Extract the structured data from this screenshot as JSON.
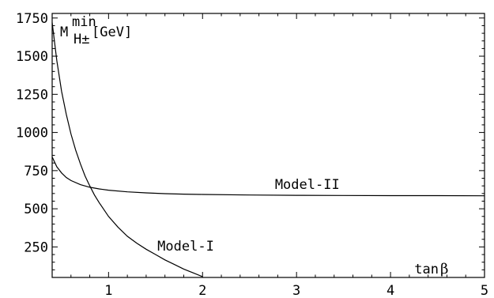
{
  "chart_data": {
    "type": "line",
    "ylabel": {
      "symbol": "M",
      "superscript": "min",
      "subscript": "H±",
      "unit": "[GeV]"
    },
    "xlabel": {
      "text": "tan",
      "symbol": "β"
    },
    "xlim": [
      0.4,
      5
    ],
    "ylim": [
      50,
      1780
    ],
    "xticks": [
      1,
      2,
      3,
      4,
      5
    ],
    "yticks": [
      250,
      500,
      750,
      1000,
      1250,
      1500,
      1750
    ],
    "grid": false,
    "series": [
      {
        "name": "Model-I",
        "x": [
          0.4,
          0.45,
          0.5,
          0.55,
          0.6,
          0.65,
          0.7,
          0.75,
          0.8,
          0.85,
          0.9,
          1.0,
          1.1,
          1.2,
          1.3,
          1.4,
          1.5,
          1.6,
          1.7,
          1.8,
          1.9,
          2.0
        ],
        "y": [
          1720,
          1470,
          1270,
          1120,
          990,
          885,
          795,
          715,
          650,
          590,
          540,
          450,
          380,
          320,
          275,
          235,
          200,
          165,
          135,
          105,
          80,
          55
        ]
      },
      {
        "name": "Model-II",
        "x": [
          0.4,
          0.45,
          0.5,
          0.55,
          0.6,
          0.7,
          0.8,
          0.9,
          1.0,
          1.2,
          1.4,
          1.6,
          1.8,
          2.0,
          2.5,
          3.0,
          3.5,
          4.0,
          4.5,
          5.0
        ],
        "y": [
          840,
          775,
          735,
          705,
          685,
          658,
          641,
          630,
          622,
          611,
          604,
          599,
          596,
          594,
          590,
          588,
          587,
          586,
          586,
          585
        ]
      }
    ],
    "annotations": [
      {
        "text": "Model-I",
        "x": 1.52,
        "y": 225
      },
      {
        "text": "Model-II",
        "x": 2.77,
        "y": 630
      }
    ]
  }
}
